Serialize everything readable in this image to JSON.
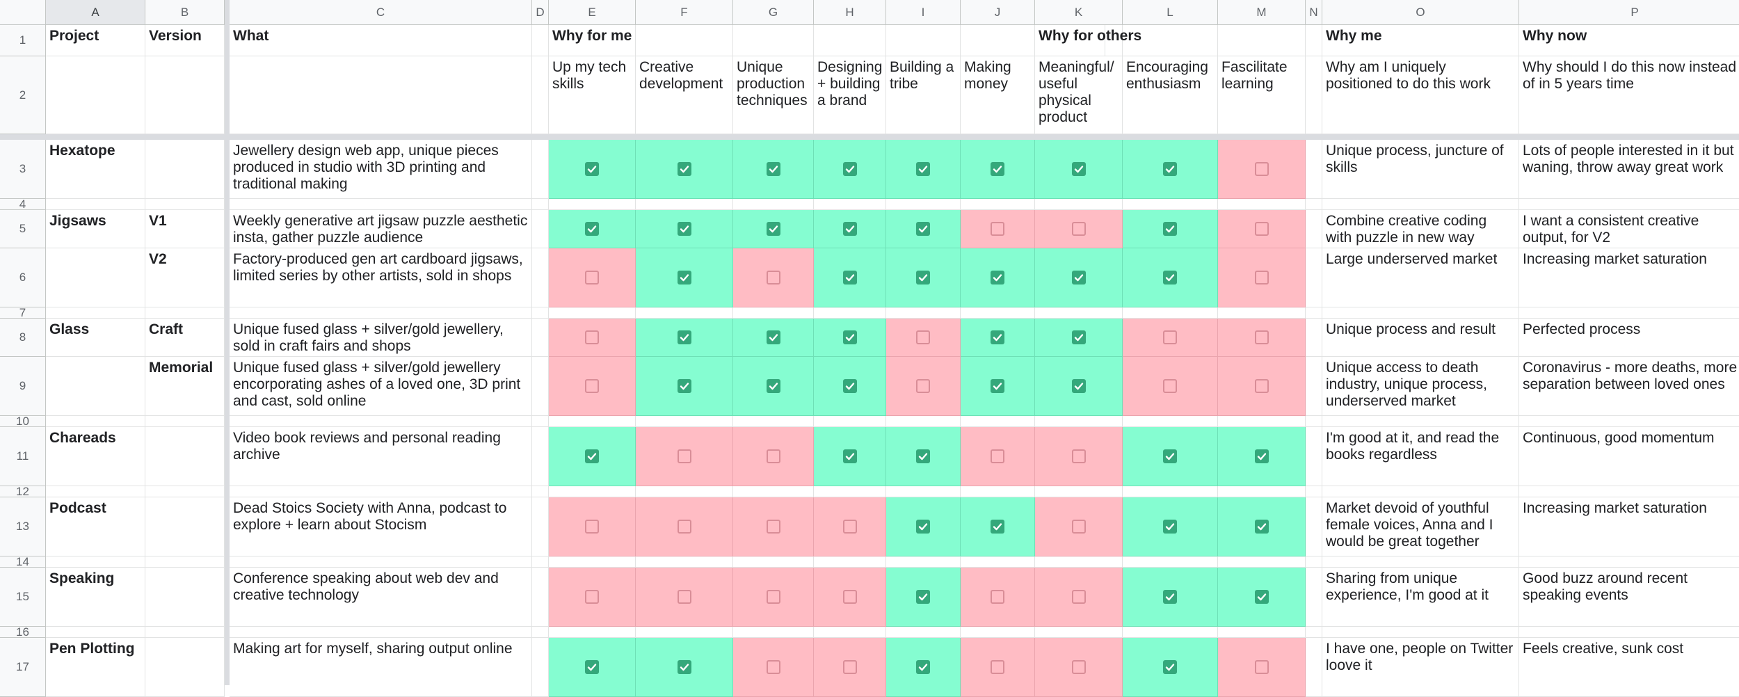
{
  "sheet": {
    "column_letters": [
      "A",
      "B",
      "C",
      "D",
      "E",
      "F",
      "G",
      "H",
      "I",
      "J",
      "K",
      "L",
      "M",
      "N",
      "O",
      "P"
    ],
    "selected_column": "A",
    "row_numbers": [
      "1",
      "2",
      "3",
      "4",
      "5",
      "6",
      "7",
      "8",
      "9",
      "10",
      "11",
      "12",
      "13",
      "14",
      "15",
      "16",
      "17"
    ],
    "header_row": {
      "A": "Project",
      "B": "Version",
      "C": "What",
      "E": "Why for me",
      "K": "Why for others",
      "O": "Why me",
      "P": "Why now"
    },
    "subheader_row": {
      "E": "Up my tech skills",
      "F": "Creative development",
      "G": "Unique production techniques",
      "H": "Designing + building a brand",
      "I": "Building a tribe",
      "J": "Making money",
      "K": "Meaningful/ useful physical product",
      "L": "Encouraging enthusiasm",
      "M": "Fascilitate learning",
      "O": "Why am I uniquely positioned to do this work",
      "P": "Why should I do this now instead of in 5 years time"
    },
    "rows": [
      {
        "row": "3",
        "project": "Hexatope",
        "version": "",
        "what": "Jewellery design web app, unique pieces produced in studio with 3D printing and traditional making",
        "checks": [
          true,
          true,
          true,
          true,
          true,
          true,
          true,
          true,
          false
        ],
        "why_me": "Unique process, juncture of skills",
        "why_now": "Lots of people interested in it but waning, throw away great work"
      },
      {
        "row": "5",
        "project": "Jigsaws",
        "version": "V1",
        "what": "Weekly generative art jigsaw puzzle aesthetic insta, gather puzzle audience",
        "checks": [
          true,
          true,
          true,
          true,
          true,
          false,
          false,
          true,
          false
        ],
        "why_me": "Combine creative coding with puzzle in new way",
        "why_now": "I want a consistent creative output, for V2"
      },
      {
        "row": "6",
        "project": "",
        "version": "V2",
        "what": "Factory-produced gen art cardboard jigsaws, limited series by other artists, sold in shops",
        "checks": [
          false,
          true,
          false,
          true,
          true,
          true,
          true,
          true,
          false
        ],
        "why_me": "Large underserved market",
        "why_now": "Increasing market saturation"
      },
      {
        "row": "8",
        "project": "Glass",
        "version": "Craft",
        "what": "Unique fused glass + silver/gold jewellery, sold in craft fairs and shops",
        "checks": [
          false,
          true,
          true,
          true,
          false,
          true,
          true,
          false,
          false
        ],
        "why_me": "Unique process and result",
        "why_now": "Perfected process"
      },
      {
        "row": "9",
        "project": "",
        "version": "Memorial",
        "what": "Unique fused glass + silver/gold jewellery encorporating ashes of a loved one, 3D print and cast, sold online",
        "checks": [
          false,
          true,
          true,
          true,
          false,
          true,
          true,
          false,
          false
        ],
        "why_me": "Unique access to death industry, unique process, underserved market",
        "why_now": "Coronavirus - more deaths, more separation between loved ones"
      },
      {
        "row": "11",
        "project": "Chareads",
        "version": "",
        "what": "Video book reviews and personal reading archive",
        "checks": [
          true,
          false,
          false,
          true,
          true,
          false,
          false,
          true,
          true
        ],
        "why_me": "I'm good at it, and read the books regardless",
        "why_now": "Continuous, good momentum"
      },
      {
        "row": "13",
        "project": "Podcast",
        "version": "",
        "what": "Dead Stoics Society with Anna, podcast to explore + learn about Stocism",
        "checks": [
          false,
          false,
          false,
          false,
          true,
          true,
          false,
          true,
          true
        ],
        "why_me": "Market devoid of youthful female voices, Anna and I would be great together",
        "why_now": "Increasing market saturation"
      },
      {
        "row": "15",
        "project": "Speaking",
        "version": "",
        "what": "Conference speaking about web dev and creative technology",
        "checks": [
          false,
          false,
          false,
          false,
          true,
          false,
          false,
          true,
          true
        ],
        "why_me": "Sharing from unique experience, I'm good at it",
        "why_now": "Good buzz around recent speaking events"
      },
      {
        "row": "17",
        "project": "Pen Plotting",
        "version": "",
        "what": "Making art for myself, sharing output online",
        "checks": [
          true,
          true,
          false,
          false,
          true,
          false,
          false,
          true,
          false
        ],
        "why_me": "I have one, people on Twitter loove it",
        "why_now": "Feels creative, sunk cost"
      }
    ]
  },
  "colors": {
    "checked_fill": "#85fdd1",
    "unchecked_fill": "#ffbcc4",
    "checkbox_on": "#34a87b",
    "checkbox_off_border": "#d98d97",
    "header_fill": "#f8f9fa"
  },
  "icons": {
    "checked": "checkbox-checked-icon",
    "unchecked": "checkbox-unchecked-icon"
  }
}
